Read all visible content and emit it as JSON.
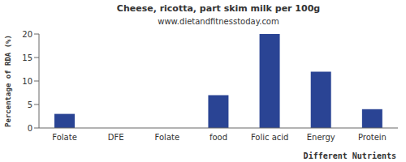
{
  "chart_data": {
    "type": "bar",
    "title": "Cheese, ricotta, part skim milk per 100g",
    "subtitle": "www.dietandfitnesstoday.com",
    "x_label": "Different Nutrients",
    "y_label": "Percentage of RDA (%)",
    "categories": [
      "Folate",
      "DFE",
      "Folate",
      "food",
      "Folic acid",
      "Energy",
      "Protein"
    ],
    "values": [
      3,
      0,
      0,
      7,
      20,
      12,
      4
    ],
    "color": "#2a4494",
    "ylim": [
      0,
      20
    ],
    "yticks": [
      0,
      5,
      10,
      15,
      20
    ],
    "grid": false
  }
}
